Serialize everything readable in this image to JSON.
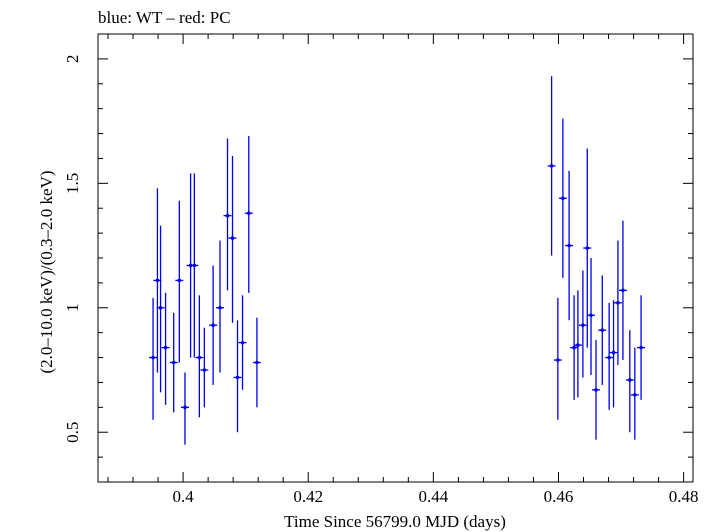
{
  "chart_data": {
    "type": "scatter",
    "title": "blue: WT – red: PC",
    "xlabel": "Time Since 56799.0 MJD (days)",
    "ylabel": "(2.0–10.0 keV)/(0.3–2.0 keV)",
    "xlim": [
      0.3864,
      0.4815
    ],
    "ylim": [
      0.3,
      2.1
    ],
    "x_ticks": [
      {
        "value": 0.4,
        "label": "0.4"
      },
      {
        "value": 0.42,
        "label": "0.42"
      },
      {
        "value": 0.44,
        "label": "0.44"
      },
      {
        "value": 0.46,
        "label": "0.46"
      },
      {
        "value": 0.48,
        "label": "0.48"
      }
    ],
    "y_ticks": [
      {
        "value": 0.5,
        "label": "0.5"
      },
      {
        "value": 1.0,
        "label": "1"
      },
      {
        "value": 1.5,
        "label": "1.5"
      },
      {
        "value": 2.0,
        "label": "2"
      }
    ],
    "grid": false,
    "series": [
      {
        "color": "#0000ee",
        "points": [
          {
            "x": 0.3952,
            "y": 0.8,
            "ylo": 0.55,
            "yhi": 1.04
          },
          {
            "x": 0.3959,
            "y": 1.11,
            "ylo": 0.74,
            "yhi": 1.48
          },
          {
            "x": 0.3964,
            "y": 1.0,
            "ylo": 0.66,
            "yhi": 1.33
          },
          {
            "x": 0.3972,
            "y": 0.84,
            "ylo": 0.61,
            "yhi": 1.06
          },
          {
            "x": 0.3985,
            "y": 0.78,
            "ylo": 0.58,
            "yhi": 0.98
          },
          {
            "x": 0.3994,
            "y": 1.11,
            "ylo": 0.78,
            "yhi": 1.43
          },
          {
            "x": 0.4003,
            "y": 0.6,
            "ylo": 0.45,
            "yhi": 0.74
          },
          {
            "x": 0.4012,
            "y": 1.17,
            "ylo": 0.8,
            "yhi": 1.54
          },
          {
            "x": 0.4018,
            "y": 1.17,
            "ylo": 0.8,
            "yhi": 1.54
          },
          {
            "x": 0.4026,
            "y": 0.8,
            "ylo": 0.56,
            "yhi": 1.05
          },
          {
            "x": 0.4034,
            "y": 0.75,
            "ylo": 0.6,
            "yhi": 0.92
          },
          {
            "x": 0.4048,
            "y": 0.93,
            "ylo": 0.69,
            "yhi": 1.17
          },
          {
            "x": 0.4059,
            "y": 1.0,
            "ylo": 0.74,
            "yhi": 1.27
          },
          {
            "x": 0.4071,
            "y": 1.37,
            "ylo": 1.07,
            "yhi": 1.68
          },
          {
            "x": 0.4079,
            "y": 1.28,
            "ylo": 0.94,
            "yhi": 1.61
          },
          {
            "x": 0.4087,
            "y": 0.72,
            "ylo": 0.5,
            "yhi": 0.95
          },
          {
            "x": 0.4095,
            "y": 0.86,
            "ylo": 0.67,
            "yhi": 1.05
          },
          {
            "x": 0.4105,
            "y": 1.38,
            "ylo": 1.06,
            "yhi": 1.69
          },
          {
            "x": 0.4118,
            "y": 0.78,
            "ylo": 0.6,
            "yhi": 0.96
          },
          {
            "x": 0.4589,
            "y": 1.57,
            "ylo": 1.21,
            "yhi": 1.93
          },
          {
            "x": 0.4599,
            "y": 0.79,
            "ylo": 0.55,
            "yhi": 1.04
          },
          {
            "x": 0.4607,
            "y": 1.44,
            "ylo": 1.12,
            "yhi": 1.76
          },
          {
            "x": 0.4617,
            "y": 1.25,
            "ylo": 0.95,
            "yhi": 1.55
          },
          {
            "x": 0.4625,
            "y": 0.84,
            "ylo": 0.63,
            "yhi": 1.05
          },
          {
            "x": 0.4631,
            "y": 0.85,
            "ylo": 0.64,
            "yhi": 1.07
          },
          {
            "x": 0.4639,
            "y": 0.93,
            "ylo": 0.72,
            "yhi": 1.15
          },
          {
            "x": 0.4646,
            "y": 1.24,
            "ylo": 0.84,
            "yhi": 1.64
          },
          {
            "x": 0.4652,
            "y": 0.97,
            "ylo": 0.73,
            "yhi": 1.2
          },
          {
            "x": 0.466,
            "y": 0.67,
            "ylo": 0.47,
            "yhi": 0.87
          },
          {
            "x": 0.467,
            "y": 0.91,
            "ylo": 0.69,
            "yhi": 1.13
          },
          {
            "x": 0.4681,
            "y": 0.8,
            "ylo": 0.59,
            "yhi": 1.02
          },
          {
            "x": 0.4688,
            "y": 0.82,
            "ylo": 0.6,
            "yhi": 1.03
          },
          {
            "x": 0.4695,
            "y": 1.02,
            "ylo": 0.77,
            "yhi": 1.27
          },
          {
            "x": 0.4703,
            "y": 1.07,
            "ylo": 0.79,
            "yhi": 1.35
          },
          {
            "x": 0.4714,
            "y": 0.71,
            "ylo": 0.5,
            "yhi": 0.91
          },
          {
            "x": 0.4722,
            "y": 0.65,
            "ylo": 0.47,
            "yhi": 0.84
          },
          {
            "x": 0.4732,
            "y": 0.84,
            "ylo": 0.63,
            "yhi": 1.05
          }
        ]
      }
    ]
  }
}
